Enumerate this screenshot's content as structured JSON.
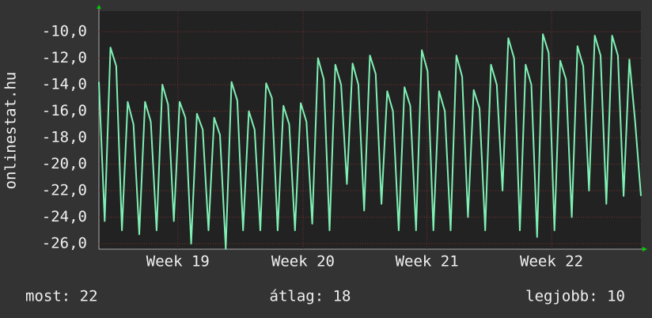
{
  "chart_data": {
    "type": "line",
    "y_label": "onlinestat.hu",
    "values": [
      -13.8,
      -24.3,
      -11.2,
      -12.6,
      -25,
      -15.3,
      -17,
      -25.3,
      -15.3,
      -16.8,
      -25,
      -14,
      -15.5,
      -24.3,
      -15.3,
      -16.5,
      -26,
      -16.2,
      -17.4,
      -25,
      -16.5,
      -17.8,
      -26.4,
      -13.8,
      -15.2,
      -25,
      -16,
      -17.4,
      -25,
      -13.9,
      -15,
      -25,
      -15.6,
      -17,
      -25,
      -15.4,
      -16.8,
      -24.5,
      -12,
      -13.6,
      -25,
      -12.5,
      -14,
      -21.5,
      -12.4,
      -14,
      -23.5,
      -11.8,
      -13.2,
      -23,
      -14.5,
      -16,
      -25,
      -14.2,
      -15.6,
      -25,
      -11.4,
      -13,
      -25,
      -14.5,
      -16,
      -25,
      -11.8,
      -13.4,
      -24,
      -14.4,
      -15.8,
      -25,
      -12.5,
      -14,
      -22,
      -10.5,
      -12,
      -25,
      -12.5,
      -14,
      -25.5,
      -10.2,
      -11.6,
      -25,
      -12.2,
      -13.6,
      -24,
      -11.1,
      -12.6,
      -22,
      -10.3,
      -11.8,
      -23,
      -10.3,
      -11.8,
      -22.4,
      -12.1,
      -16.8,
      -22.4
    ],
    "color": "#7ff0b4",
    "xlim": [
      0,
      94
    ],
    "xticks": [
      {
        "value": 13.7,
        "label": "Week 19"
      },
      {
        "value": 35.4,
        "label": "Week 20"
      },
      {
        "value": 56.9,
        "label": "Week 21"
      },
      {
        "value": 78.5,
        "label": "Week 22"
      }
    ],
    "ylim": [
      -26.42,
      -8.45
    ],
    "yticks": [
      {
        "value": -10,
        "label": "-10,0"
      },
      {
        "value": -12,
        "label": "-12,0"
      },
      {
        "value": -14,
        "label": "-14,0"
      },
      {
        "value": -16,
        "label": "-16,0"
      },
      {
        "value": -18,
        "label": "-18,0"
      },
      {
        "value": -20,
        "label": "-20,0"
      },
      {
        "value": -22,
        "label": "-22,0"
      },
      {
        "value": -24,
        "label": "-24,0"
      },
      {
        "value": -26,
        "label": "-26,0"
      }
    ],
    "grid": true,
    "stats": [
      "most: 22",
      "átlag: 18",
      "legjobb: 10"
    ]
  }
}
